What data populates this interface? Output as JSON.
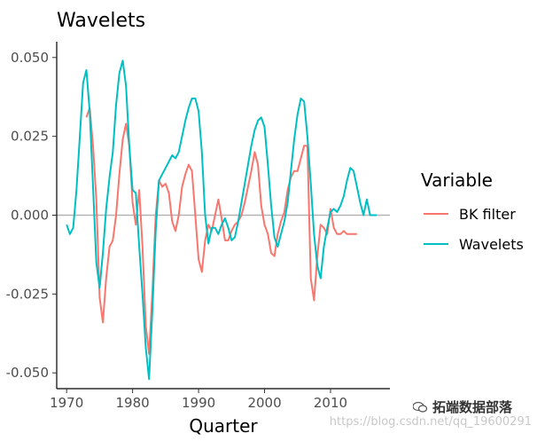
{
  "chart_data": {
    "type": "line",
    "title": "Wavelets",
    "xlabel": "Quarter",
    "ylabel": "",
    "xlim": [
      1968.5,
      2019
    ],
    "ylim": [
      -0.055,
      0.055
    ],
    "x_ticks": [
      1970,
      1980,
      1990,
      2000,
      2010
    ],
    "y_ticks": [
      -0.05,
      -0.025,
      0.0,
      0.025,
      0.05
    ],
    "y_tick_labels": [
      "-0.050",
      "-0.025",
      "0.000",
      "0.025",
      "0.050"
    ],
    "hline": 0,
    "legend": {
      "title": "Variable",
      "position": "right"
    },
    "series": [
      {
        "name": "BK filter",
        "color": "#F8766D",
        "x": [
          1973,
          1973.5,
          1974,
          1974.5,
          1975,
          1975.5,
          1976,
          1976.5,
          1977,
          1977.5,
          1978,
          1978.5,
          1979,
          1979.5,
          1980,
          1980.5,
          1981,
          1981.5,
          1982,
          1982.5,
          1983,
          1983.5,
          1984,
          1984.5,
          1985,
          1985.5,
          1986,
          1986.5,
          1987,
          1987.5,
          1988,
          1988.5,
          1989,
          1989.5,
          1990,
          1990.5,
          1991,
          1991.5,
          1992,
          1992.5,
          1993,
          1993.5,
          1994,
          1994.5,
          1995,
          1995.5,
          1996,
          1996.5,
          1997,
          1997.5,
          1998,
          1998.5,
          1999,
          1999.5,
          2000,
          2000.5,
          2001,
          2001.5,
          2002,
          2002.5,
          2003,
          2003.5,
          2004,
          2004.5,
          2005,
          2005.5,
          2006,
          2006.5,
          2007,
          2007.5,
          2008,
          2008.5,
          2009,
          2009.5,
          2010,
          2010.5,
          2011,
          2011.5,
          2012,
          2012.5,
          2013,
          2013.5,
          2014
        ],
        "y": [
          0.031,
          0.034,
          0.022,
          0.005,
          -0.026,
          -0.034,
          -0.02,
          -0.01,
          -0.008,
          0.0,
          0.013,
          0.024,
          0.029,
          0.022,
          0.004,
          -0.003,
          0.008,
          -0.01,
          -0.035,
          -0.044,
          -0.024,
          0.0,
          0.011,
          0.009,
          0.01,
          0.007,
          -0.002,
          -0.005,
          0.0,
          0.009,
          0.013,
          0.016,
          0.014,
          0.0,
          -0.014,
          -0.018,
          -0.008,
          -0.003,
          -0.005,
          0.0,
          0.005,
          -0.001,
          -0.008,
          -0.008,
          -0.005,
          -0.003,
          -0.002,
          0.0,
          0.004,
          0.009,
          0.014,
          0.02,
          0.016,
          0.003,
          -0.003,
          -0.006,
          -0.012,
          -0.013,
          -0.006,
          -0.002,
          0.001,
          0.008,
          0.012,
          0.014,
          0.014,
          0.018,
          0.022,
          0.022,
          -0.02,
          -0.027,
          -0.013,
          -0.003,
          -0.004,
          -0.006,
          0.002,
          -0.004,
          -0.006,
          -0.006,
          -0.005,
          -0.006,
          -0.006,
          -0.006,
          -0.006
        ],
        "x_start": 1973
      },
      {
        "name": "Wavelets",
        "color": "#00BFC4",
        "x": [
          1970,
          1970.5,
          1971,
          1971.5,
          1972,
          1972.5,
          1973,
          1973.5,
          1974,
          1974.5,
          1975,
          1975.5,
          1976,
          1976.5,
          1977,
          1977.5,
          1978,
          1978.5,
          1979,
          1979.5,
          1980,
          1980.5,
          1981,
          1981.5,
          1982,
          1982.5,
          1983,
          1983.5,
          1984,
          1984.5,
          1985,
          1985.5,
          1986,
          1986.5,
          1987,
          1987.5,
          1988,
          1988.5,
          1989,
          1989.5,
          1990,
          1990.5,
          1991,
          1991.5,
          1992,
          1992.5,
          1993,
          1993.5,
          1994,
          1994.5,
          1995,
          1995.5,
          1996,
          1996.5,
          1997,
          1997.5,
          1998,
          1998.5,
          1999,
          1999.5,
          2000,
          2000.5,
          2001,
          2001.5,
          2002,
          2002.5,
          2003,
          2003.5,
          2004,
          2004.5,
          2005,
          2005.5,
          2006,
          2006.5,
          2007,
          2007.5,
          2008,
          2008.5,
          2009,
          2009.5,
          2010,
          2010.5,
          2011,
          2011.5,
          2012,
          2012.5,
          2013,
          2013.5,
          2014,
          2014.5,
          2015,
          2015.5,
          2016,
          2016.5,
          2017
        ],
        "y": [
          -0.003,
          -0.006,
          -0.004,
          0.008,
          0.025,
          0.042,
          0.046,
          0.033,
          0.009,
          -0.015,
          -0.023,
          -0.012,
          0.002,
          0.012,
          0.02,
          0.035,
          0.045,
          0.049,
          0.041,
          0.022,
          0.008,
          0.007,
          -0.01,
          -0.025,
          -0.042,
          -0.052,
          -0.03,
          -0.005,
          0.011,
          0.013,
          0.015,
          0.017,
          0.019,
          0.018,
          0.02,
          0.025,
          0.03,
          0.034,
          0.037,
          0.037,
          0.033,
          0.02,
          0.0,
          -0.009,
          -0.004,
          -0.004,
          -0.006,
          -0.003,
          -0.001,
          -0.004,
          -0.008,
          -0.007,
          -0.002,
          0.004,
          0.01,
          0.016,
          0.022,
          0.027,
          0.03,
          0.031,
          0.028,
          0.016,
          0.003,
          -0.007,
          -0.01,
          -0.006,
          -0.002,
          0.004,
          0.014,
          0.024,
          0.032,
          0.037,
          0.036,
          0.025,
          0.01,
          -0.006,
          -0.016,
          -0.02,
          -0.01,
          -0.004,
          0.001,
          0.002,
          0.001,
          0.003,
          0.006,
          0.011,
          0.015,
          0.014,
          0.009,
          0.004,
          0.0,
          0.005,
          0.0,
          0.0,
          0.0
        ],
        "x_start": 1970
      }
    ]
  },
  "watermark": "https://blog.csdn.net/qq_19600291",
  "brand": "拓端数据部落"
}
